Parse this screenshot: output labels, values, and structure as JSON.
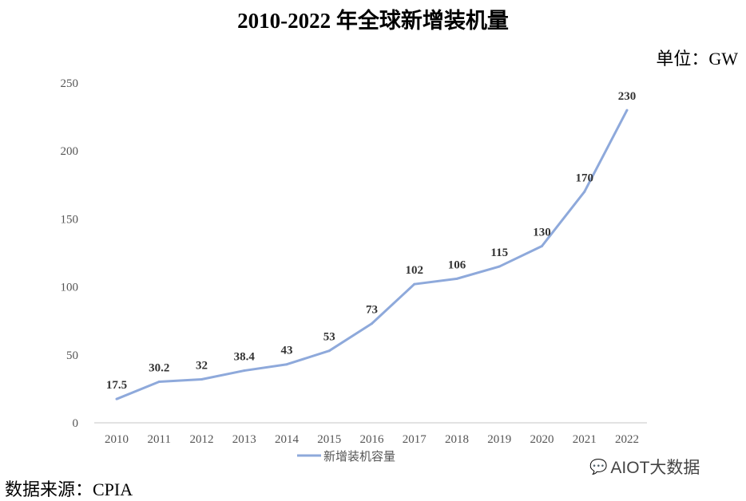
{
  "chart_data": {
    "type": "line",
    "title": "2010-2022 年全球新增装机量",
    "unit_label": "单位：GW",
    "categories": [
      "2010",
      "2011",
      "2012",
      "2013",
      "2014",
      "2015",
      "2016",
      "2017",
      "2018",
      "2019",
      "2020",
      "2021",
      "2022"
    ],
    "series": [
      {
        "name": "新增装机容量",
        "values": [
          17.5,
          30.2,
          32,
          38.4,
          43,
          53,
          73,
          102,
          106,
          115,
          130,
          170,
          230
        ],
        "color": "#8EA9DB"
      }
    ],
    "data_labels": [
      "17.5",
      "30.2",
      "32",
      "38.4",
      "43",
      "53",
      "73",
      "102",
      "106",
      "115",
      "130",
      "170",
      "230"
    ],
    "ylim": [
      0,
      250
    ],
    "yticks": [
      0,
      50,
      100,
      150,
      200,
      250
    ],
    "grid": false,
    "legend": "bottom"
  },
  "source": "数据来源：CPIA",
  "watermark": "AIOT大数据"
}
